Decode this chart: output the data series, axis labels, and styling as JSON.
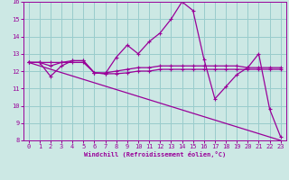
{
  "background_color": "#cce8e4",
  "line_color": "#990099",
  "grid_color": "#99cccc",
  "xlabel": "Windchill (Refroidissement éolien,°C)",
  "xlim": [
    -0.5,
    23.5
  ],
  "ylim": [
    8,
    16
  ],
  "yticks": [
    8,
    9,
    10,
    11,
    12,
    13,
    14,
    15,
    16
  ],
  "xticks": [
    0,
    1,
    2,
    3,
    4,
    5,
    6,
    7,
    8,
    9,
    10,
    11,
    12,
    13,
    14,
    15,
    16,
    17,
    18,
    19,
    20,
    21,
    22,
    23
  ],
  "lines": [
    {
      "x": [
        0,
        1,
        2,
        3,
        4,
        5,
        6,
        7,
        8,
        9,
        10,
        11,
        12,
        13,
        14,
        15,
        16,
        17,
        18,
        19,
        20,
        21,
        22,
        23
      ],
      "y": [
        12.5,
        12.5,
        12.5,
        12.5,
        12.5,
        12.5,
        11.9,
        11.9,
        12.0,
        12.1,
        12.2,
        12.2,
        12.3,
        12.3,
        12.3,
        12.3,
        12.3,
        12.3,
        12.3,
        12.3,
        12.2,
        12.2,
        12.2,
        12.2
      ],
      "marker": true
    },
    {
      "x": [
        0,
        1,
        2,
        3,
        4,
        5,
        6,
        7,
        8,
        9,
        10,
        11,
        12,
        13,
        14,
        15,
        16,
        17,
        18,
        19,
        20,
        21,
        22,
        23
      ],
      "y": [
        12.5,
        12.5,
        12.3,
        12.5,
        12.6,
        12.6,
        11.9,
        11.85,
        11.85,
        11.9,
        12.0,
        12.0,
        12.1,
        12.1,
        12.1,
        12.1,
        12.1,
        12.1,
        12.1,
        12.1,
        12.1,
        12.1,
        12.1,
        12.1
      ],
      "marker": true
    },
    {
      "x": [
        0,
        1,
        2,
        3,
        4,
        5,
        6,
        7,
        8,
        9,
        10,
        11,
        12,
        13,
        14,
        15,
        16,
        17,
        18,
        19,
        20,
        21,
        22,
        23
      ],
      "y": [
        12.5,
        12.5,
        11.7,
        12.3,
        12.6,
        12.6,
        11.9,
        11.85,
        12.8,
        13.5,
        13.0,
        13.7,
        14.2,
        15.0,
        16.0,
        15.5,
        12.7,
        10.4,
        11.1,
        11.8,
        12.2,
        13.0,
        9.8,
        8.2
      ],
      "marker": true
    },
    {
      "x": [
        0,
        23
      ],
      "y": [
        12.5,
        8.0
      ],
      "marker": false
    }
  ]
}
